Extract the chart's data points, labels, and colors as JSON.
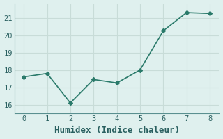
{
  "x": [
    0,
    1,
    2,
    3,
    4,
    5,
    6,
    7,
    8
  ],
  "y": [
    17.6,
    17.8,
    16.1,
    17.45,
    17.25,
    18.0,
    20.25,
    21.3,
    21.25
  ],
  "line_color": "#2a7a6a",
  "marker": "D",
  "marker_size": 3,
  "marker_linewidth": 1.0,
  "line_width": 1.2,
  "xlabel": "Humidex (Indice chaleur)",
  "xlim": [
    -0.4,
    8.4
  ],
  "ylim": [
    15.5,
    21.8
  ],
  "xticks": [
    0,
    1,
    2,
    3,
    4,
    5,
    6,
    7,
    8
  ],
  "yticks": [
    16,
    17,
    18,
    19,
    20,
    21
  ],
  "bg_color": "#dff0ee",
  "grid_color": "#c8dcd8",
  "spine_color": "#5a9090",
  "tick_color": "#2a6060",
  "tick_label_fontsize": 7.5,
  "xlabel_fontsize": 9
}
